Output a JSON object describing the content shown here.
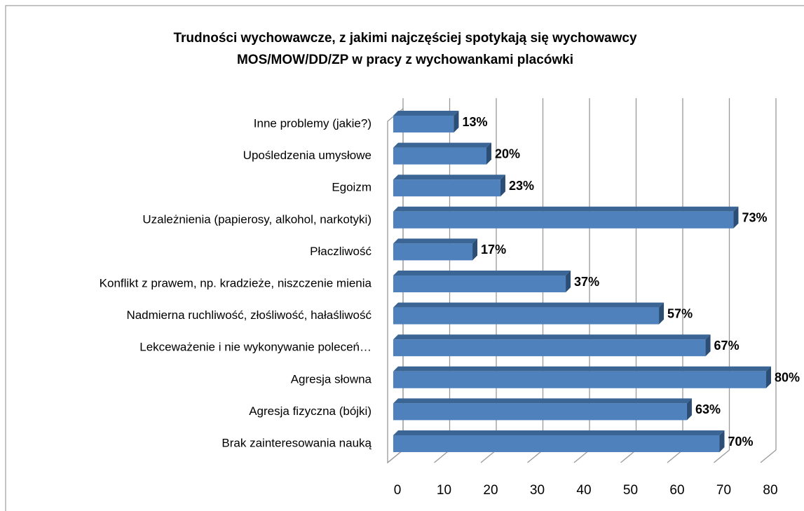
{
  "chart_data": {
    "type": "bar3d_horizontal",
    "title": [
      "Trudności wychowawcze, z jakimi najczęściej spotykają się wychowawcy",
      "MOS/MOW/DD/ZP w pracy z wychowankami placówki"
    ],
    "categories": [
      "Inne problemy (jakie?)",
      "Upośledzenia umysłowe",
      "Egoizm",
      "Uzależnienia (papierosy, alkohol, narkotyki)",
      "Płaczliwość",
      "Konflikt z prawem, np. kradzieże, niszczenie mienia",
      "Nadmierna ruchliwość, złośliwość, hałaśliwość",
      "Lekceważenie i nie wykonywanie poleceń…",
      "Agresja słowna",
      "Agresja fizyczna (bójki)",
      "Brak zainteresowania nauką"
    ],
    "values": [
      13,
      20,
      23,
      73,
      17,
      37,
      57,
      67,
      80,
      63,
      70
    ],
    "value_labels": [
      "13%",
      "20%",
      "23%",
      "73%",
      "17%",
      "37%",
      "57%",
      "67%",
      "80%",
      "63%",
      "70%"
    ],
    "color": "#4f81bd",
    "xlim": [
      0,
      80
    ],
    "xticks": [
      0,
      10,
      20,
      30,
      40,
      50,
      60,
      70,
      80
    ],
    "grid": true
  }
}
